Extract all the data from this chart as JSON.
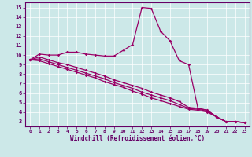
{
  "xlabel": "Windchill (Refroidissement éolien,°C)",
  "background_color": "#cce8e8",
  "line_color": "#990066",
  "xlim": [
    -0.5,
    23.5
  ],
  "ylim": [
    2.5,
    15.5
  ],
  "xticks": [
    0,
    1,
    2,
    3,
    4,
    5,
    6,
    7,
    8,
    9,
    10,
    11,
    12,
    13,
    14,
    15,
    16,
    17,
    18,
    19,
    20,
    21,
    22,
    23
  ],
  "yticks": [
    3,
    4,
    5,
    6,
    7,
    8,
    9,
    10,
    11,
    12,
    13,
    14,
    15
  ],
  "series": [
    {
      "x": [
        0,
        1,
        2,
        3,
        4,
        5,
        6,
        7,
        8,
        9,
        10,
        11,
        12,
        13,
        14,
        15,
        16,
        17,
        18,
        19,
        20,
        21,
        22,
        23
      ],
      "y": [
        9.5,
        10.1,
        10.0,
        10.0,
        10.3,
        10.3,
        10.1,
        10.0,
        9.9,
        9.9,
        10.5,
        11.1,
        15.0,
        14.9,
        12.5,
        11.5,
        9.4,
        9.0,
        4.4,
        4.2,
        3.5,
        3.0,
        3.0,
        2.9
      ]
    },
    {
      "x": [
        0,
        1,
        2,
        3,
        4,
        5,
        6,
        7,
        8,
        9,
        10,
        11,
        12,
        13,
        14,
        15,
        16,
        17,
        18,
        19,
        20,
        21,
        22,
        23
      ],
      "y": [
        9.5,
        9.8,
        9.5,
        9.2,
        9.0,
        8.7,
        8.4,
        8.1,
        7.8,
        7.4,
        7.1,
        6.8,
        6.5,
        6.1,
        5.8,
        5.5,
        5.1,
        4.5,
        4.4,
        4.2,
        3.5,
        3.0,
        3.0,
        2.9
      ]
    },
    {
      "x": [
        0,
        1,
        2,
        3,
        4,
        5,
        6,
        7,
        8,
        9,
        10,
        11,
        12,
        13,
        14,
        15,
        16,
        17,
        18,
        19,
        20,
        21,
        22,
        23
      ],
      "y": [
        9.5,
        9.6,
        9.3,
        9.0,
        8.7,
        8.4,
        8.1,
        7.8,
        7.5,
        7.1,
        6.8,
        6.5,
        6.1,
        5.8,
        5.5,
        5.2,
        4.8,
        4.4,
        4.3,
        4.1,
        3.5,
        3.0,
        3.0,
        2.9
      ]
    },
    {
      "x": [
        0,
        1,
        2,
        3,
        4,
        5,
        6,
        7,
        8,
        9,
        10,
        11,
        12,
        13,
        14,
        15,
        16,
        17,
        18,
        19,
        20,
        21,
        22,
        23
      ],
      "y": [
        9.5,
        9.4,
        9.1,
        8.8,
        8.5,
        8.2,
        7.9,
        7.6,
        7.2,
        6.9,
        6.6,
        6.2,
        5.9,
        5.5,
        5.2,
        4.9,
        4.6,
        4.3,
        4.2,
        4.0,
        3.5,
        3.0,
        3.0,
        2.9
      ]
    }
  ]
}
